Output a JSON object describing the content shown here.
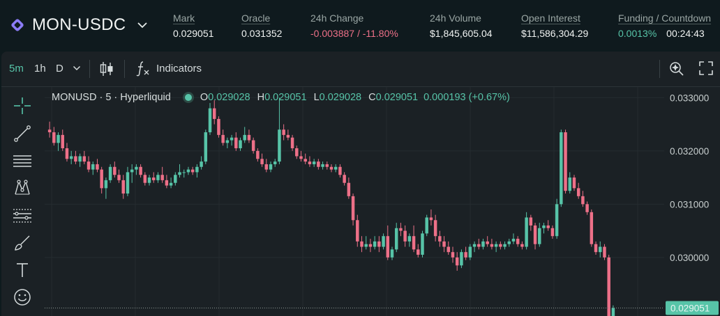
{
  "header": {
    "pair": "MON-USDC",
    "stats": [
      {
        "label": "Mark",
        "value": "0.029051"
      },
      {
        "label": "Oracle",
        "value": "0.031352"
      },
      {
        "label": "24h Change",
        "value": "-0.003887 / -11.80%"
      },
      {
        "label": "24h Volume",
        "value": "$1,845,605.04"
      },
      {
        "label": "Open Interest",
        "value": "$11,586,304.29"
      },
      {
        "label": "Funding / Countdown",
        "value": "0.0013%",
        "value2": "00:24:43"
      }
    ]
  },
  "toolbar": {
    "intervals": [
      "5m",
      "1h",
      "D"
    ],
    "indicators_label": "Indicators"
  },
  "legend": {
    "symbol": "MONUSD · 5 · Hyperliquid",
    "o_label": "O",
    "o": "0.029028",
    "h_label": "H",
    "h": "0.029051",
    "l_label": "L",
    "l": "0.029028",
    "c_label": "C",
    "c": "0.029051",
    "change": "0.000193 (+0.67%)"
  },
  "colors": {
    "up": "#57c4a8",
    "down": "#ed7088",
    "background": "#1b2125"
  },
  "icons": [
    "crosshair-icon",
    "trendline-icon",
    "horizontal-lines-icon",
    "pattern-icon",
    "fib-icon",
    "brush-icon",
    "text-icon",
    "emoji-icon"
  ],
  "chart_data": {
    "type": "candlestick",
    "ylim": [
      0.0289,
      0.0332
    ],
    "y_ticks": [
      "0.033000",
      "0.032000",
      "0.031000",
      "0.030000"
    ],
    "last_price_label": "0.029051",
    "candles": [
      [
        0.0324,
        0.03255,
        0.03225,
        0.03235
      ],
      [
        0.03235,
        0.03245,
        0.0321,
        0.03215
      ],
      [
        0.03215,
        0.03235,
        0.032,
        0.0323
      ],
      [
        0.0323,
        0.0324,
        0.032,
        0.03205
      ],
      [
        0.03205,
        0.03215,
        0.0318,
        0.03185
      ],
      [
        0.03185,
        0.032,
        0.03175,
        0.0319
      ],
      [
        0.0319,
        0.032,
        0.03175,
        0.0318
      ],
      [
        0.0318,
        0.03195,
        0.0317,
        0.0319
      ],
      [
        0.0319,
        0.032,
        0.03175,
        0.0318
      ],
      [
        0.0318,
        0.0319,
        0.0316,
        0.03165
      ],
      [
        0.03165,
        0.0318,
        0.03155,
        0.03175
      ],
      [
        0.03175,
        0.03185,
        0.0316,
        0.03165
      ],
      [
        0.03165,
        0.0317,
        0.0312,
        0.0313
      ],
      [
        0.0313,
        0.0315,
        0.0311,
        0.03145
      ],
      [
        0.03145,
        0.03175,
        0.0314,
        0.0317
      ],
      [
        0.0317,
        0.0318,
        0.0315,
        0.03155
      ],
      [
        0.03155,
        0.03165,
        0.0314,
        0.03145
      ],
      [
        0.03145,
        0.03155,
        0.0311,
        0.0312
      ],
      [
        0.0312,
        0.0317,
        0.03115,
        0.0316
      ],
      [
        0.0316,
        0.03175,
        0.0314,
        0.03165
      ],
      [
        0.03165,
        0.03175,
        0.03155,
        0.0317
      ],
      [
        0.0317,
        0.03175,
        0.0315,
        0.03155
      ],
      [
        0.03155,
        0.0316,
        0.03135,
        0.0314
      ],
      [
        0.0314,
        0.03155,
        0.03135,
        0.0315
      ],
      [
        0.0315,
        0.0316,
        0.0314,
        0.03145
      ],
      [
        0.03145,
        0.0316,
        0.0314,
        0.03155
      ],
      [
        0.03155,
        0.0317,
        0.0314,
        0.03145
      ],
      [
        0.03145,
        0.03155,
        0.0313,
        0.03135
      ],
      [
        0.03135,
        0.0315,
        0.0313,
        0.0314
      ],
      [
        0.0314,
        0.0316,
        0.03135,
        0.03155
      ],
      [
        0.03155,
        0.03175,
        0.0315,
        0.0316
      ],
      [
        0.0316,
        0.03165,
        0.0315,
        0.0316
      ],
      [
        0.0316,
        0.0317,
        0.03155,
        0.03165
      ],
      [
        0.03165,
        0.0317,
        0.03155,
        0.0316
      ],
      [
        0.0316,
        0.03175,
        0.0315,
        0.0317
      ],
      [
        0.0317,
        0.0319,
        0.03165,
        0.0318
      ],
      [
        0.0318,
        0.0324,
        0.03175,
        0.03235
      ],
      [
        0.03235,
        0.0329,
        0.0323,
        0.0328
      ],
      [
        0.0328,
        0.03295,
        0.0325,
        0.0326
      ],
      [
        0.0326,
        0.03265,
        0.03225,
        0.0323
      ],
      [
        0.0323,
        0.0324,
        0.0321,
        0.03215
      ],
      [
        0.03215,
        0.03225,
        0.03205,
        0.0322
      ],
      [
        0.0322,
        0.0323,
        0.0321,
        0.03225
      ],
      [
        0.03225,
        0.03235,
        0.032,
        0.03205
      ],
      [
        0.03205,
        0.03225,
        0.032,
        0.0322
      ],
      [
        0.0322,
        0.03245,
        0.03215,
        0.0323
      ],
      [
        0.0323,
        0.0324,
        0.03215,
        0.0322
      ],
      [
        0.0322,
        0.03225,
        0.03195,
        0.032
      ],
      [
        0.032,
        0.03205,
        0.0318,
        0.03185
      ],
      [
        0.03185,
        0.03195,
        0.0317,
        0.03175
      ],
      [
        0.03175,
        0.03185,
        0.0316,
        0.03165
      ],
      [
        0.03165,
        0.0318,
        0.0316,
        0.03175
      ],
      [
        0.03175,
        0.03185,
        0.0317,
        0.0318
      ],
      [
        0.0318,
        0.033,
        0.03175,
        0.0324
      ],
      [
        0.0324,
        0.0325,
        0.0322,
        0.0323
      ],
      [
        0.0323,
        0.0324,
        0.0322,
        0.03225
      ],
      [
        0.03225,
        0.0323,
        0.032,
        0.03205
      ],
      [
        0.03205,
        0.0321,
        0.03185,
        0.0319
      ],
      [
        0.0319,
        0.032,
        0.0318,
        0.03185
      ],
      [
        0.03185,
        0.03195,
        0.03175,
        0.0318
      ],
      [
        0.0318,
        0.0319,
        0.0317,
        0.03175
      ],
      [
        0.03175,
        0.03185,
        0.0317,
        0.0318
      ],
      [
        0.0318,
        0.03185,
        0.03165,
        0.0317
      ],
      [
        0.0317,
        0.0318,
        0.03165,
        0.03175
      ],
      [
        0.03175,
        0.0318,
        0.03165,
        0.0317
      ],
      [
        0.0317,
        0.03175,
        0.0316,
        0.03165
      ],
      [
        0.03165,
        0.03175,
        0.0316,
        0.0317
      ],
      [
        0.0317,
        0.03175,
        0.0315,
        0.03155
      ],
      [
        0.03155,
        0.0316,
        0.03135,
        0.0314
      ],
      [
        0.0314,
        0.0315,
        0.0311,
        0.03115
      ],
      [
        0.03115,
        0.0312,
        0.0306,
        0.0307
      ],
      [
        0.0307,
        0.0308,
        0.0302,
        0.0303
      ],
      [
        0.0303,
        0.0304,
        0.0301,
        0.0302
      ],
      [
        0.0302,
        0.0304,
        0.03015,
        0.03025
      ],
      [
        0.03025,
        0.03035,
        0.0301,
        0.0302
      ],
      [
        0.0302,
        0.0304,
        0.03015,
        0.0303
      ],
      [
        0.0303,
        0.0304,
        0.0301,
        0.0302
      ],
      [
        0.0302,
        0.03045,
        0.03015,
        0.0304
      ],
      [
        0.0304,
        0.0306,
        0.02995,
        0.03
      ],
      [
        0.03,
        0.0302,
        0.02995,
        0.03015
      ],
      [
        0.03015,
        0.03065,
        0.0301,
        0.03055
      ],
      [
        0.03055,
        0.03065,
        0.0304,
        0.0305
      ],
      [
        0.0305,
        0.0306,
        0.0302,
        0.0303
      ],
      [
        0.0303,
        0.03045,
        0.0302,
        0.0304
      ],
      [
        0.0304,
        0.0306,
        0.0301,
        0.03015
      ],
      [
        0.03015,
        0.03025,
        0.03,
        0.03005
      ],
      [
        0.03005,
        0.0305,
        0.03,
        0.03045
      ],
      [
        0.03045,
        0.0308,
        0.0304,
        0.03075
      ],
      [
        0.03075,
        0.0309,
        0.0306,
        0.0307
      ],
      [
        0.0307,
        0.0308,
        0.0303,
        0.0304
      ],
      [
        0.0304,
        0.0305,
        0.0302,
        0.0303
      ],
      [
        0.0303,
        0.0304,
        0.0301,
        0.0302
      ],
      [
        0.0302,
        0.0303,
        0.03005,
        0.0301
      ],
      [
        0.0301,
        0.0302,
        0.0299,
        0.03
      ],
      [
        0.03,
        0.0301,
        0.02975,
        0.02985
      ],
      [
        0.02985,
        0.03015,
        0.0298,
        0.0301
      ],
      [
        0.0301,
        0.0302,
        0.02995,
        0.03
      ],
      [
        0.03,
        0.03025,
        0.02995,
        0.0302
      ],
      [
        0.0302,
        0.0303,
        0.0301,
        0.03025
      ],
      [
        0.03025,
        0.03035,
        0.03015,
        0.0302
      ],
      [
        0.0302,
        0.03035,
        0.03015,
        0.0303
      ],
      [
        0.0303,
        0.0304,
        0.0302,
        0.03025
      ],
      [
        0.03025,
        0.03035,
        0.03015,
        0.0302
      ],
      [
        0.0302,
        0.0303,
        0.0301,
        0.03025
      ],
      [
        0.03025,
        0.0303,
        0.03015,
        0.0302
      ],
      [
        0.0302,
        0.0303,
        0.03015,
        0.03025
      ],
      [
        0.03025,
        0.03035,
        0.0302,
        0.0303
      ],
      [
        0.0303,
        0.03045,
        0.03025,
        0.03035
      ],
      [
        0.03035,
        0.0304,
        0.0302,
        0.03025
      ],
      [
        0.03025,
        0.0303,
        0.03015,
        0.0302
      ],
      [
        0.0302,
        0.03085,
        0.03015,
        0.03075
      ],
      [
        0.03075,
        0.0308,
        0.0305,
        0.0306
      ],
      [
        0.0306,
        0.03065,
        0.03015,
        0.03025
      ],
      [
        0.03025,
        0.03065,
        0.0302,
        0.03055
      ],
      [
        0.03055,
        0.03065,
        0.03045,
        0.0306
      ],
      [
        0.0306,
        0.0307,
        0.0305,
        0.03055
      ],
      [
        0.03055,
        0.0306,
        0.03035,
        0.0304
      ],
      [
        0.0304,
        0.0311,
        0.03035,
        0.031
      ],
      [
        0.031,
        0.0324,
        0.03095,
        0.03235
      ],
      [
        0.03235,
        0.0324,
        0.0312,
        0.03125
      ],
      [
        0.03125,
        0.0316,
        0.0312,
        0.0315
      ],
      [
        0.0315,
        0.03155,
        0.03125,
        0.0313
      ],
      [
        0.0313,
        0.0314,
        0.0311,
        0.03115
      ],
      [
        0.03115,
        0.03125,
        0.03095,
        0.031
      ],
      [
        0.031,
        0.03105,
        0.0308,
        0.03085
      ],
      [
        0.03085,
        0.0309,
        0.0302,
        0.03025
      ],
      [
        0.03025,
        0.0303,
        0.03005,
        0.0301
      ],
      [
        0.0301,
        0.0303,
        0.03,
        0.0302
      ],
      [
        0.0302,
        0.03025,
        0.02995,
        0.03
      ],
      [
        0.03,
        0.03005,
        0.02885,
        0.0289
      ],
      [
        0.0289,
        0.0291,
        0.02885,
        0.02905
      ]
    ]
  }
}
